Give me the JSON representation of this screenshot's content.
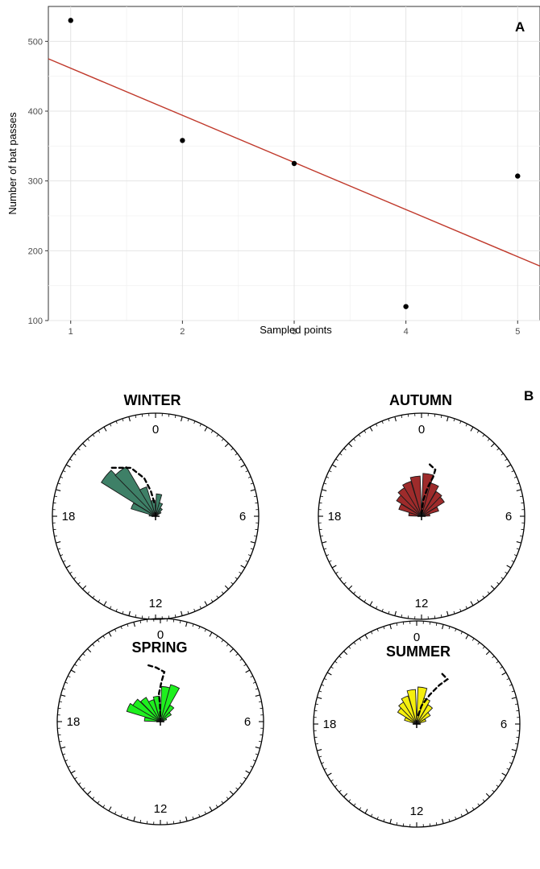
{
  "panel_a": {
    "letter": "A",
    "chart_data": {
      "type": "scatter",
      "title": "",
      "xlabel": "Sampled points",
      "ylabel": "Number of bat passes",
      "xlim": [
        0.8,
        5.2
      ],
      "ylim": [
        100,
        550
      ],
      "x_ticks": [
        1,
        2,
        3,
        4,
        5
      ],
      "y_ticks": [
        100,
        200,
        300,
        400,
        500
      ],
      "points": [
        {
          "x": 1,
          "y": 530
        },
        {
          "x": 2,
          "y": 358
        },
        {
          "x": 3,
          "y": 325
        },
        {
          "x": 4,
          "y": 120
        },
        {
          "x": 5,
          "y": 307
        }
      ],
      "trend_line": {
        "x": [
          0.8,
          5.2
        ],
        "y": [
          475,
          178
        ],
        "color": "#c0392b"
      },
      "grid": true,
      "point_color": "#000000",
      "background": "#ffffff"
    }
  },
  "panel_b": {
    "letter": "B",
    "chart_data": [
      {
        "type": "rose",
        "title": "WINTER",
        "color": "#3e8067",
        "hour_labels": [
          "0",
          "6",
          "12",
          "18"
        ],
        "bins": [
          {
            "hour": 19.6,
            "value": 0.4
          },
          {
            "hour": 20.6,
            "value": 1.0
          },
          {
            "hour": 21.5,
            "value": 0.9
          },
          {
            "hour": 22.4,
            "value": 0.48
          },
          {
            "hour": 23.4,
            "value": 0.25
          },
          {
            "hour": 0.6,
            "value": 0.35
          },
          {
            "hour": 1.5,
            "value": 0.22
          },
          {
            "hour": 2.5,
            "value": 0.15
          },
          {
            "hour": 3.4,
            "value": 0.1
          },
          {
            "hour": 18.6,
            "value": 0.1
          }
        ],
        "mean_line": [
          [
            21.2,
            1.02
          ],
          [
            22.2,
            0.85
          ],
          [
            22.9,
            0.62
          ],
          [
            23.3,
            0.4
          ],
          [
            23.7,
            0.2
          ]
        ]
      },
      {
        "type": "rose",
        "title": "AUTUMN",
        "color": "#9e2b2b",
        "hour_labels": [
          "0",
          "6",
          "12",
          "18"
        ],
        "bins": [
          {
            "hour": 18.6,
            "value": 0.2
          },
          {
            "hour": 19.6,
            "value": 0.37
          },
          {
            "hour": 20.6,
            "value": 0.46
          },
          {
            "hour": 21.5,
            "value": 0.52
          },
          {
            "hour": 22.4,
            "value": 0.57
          },
          {
            "hour": 23.4,
            "value": 0.63
          },
          {
            "hour": 0.6,
            "value": 0.67
          },
          {
            "hour": 1.5,
            "value": 0.54
          },
          {
            "hour": 2.5,
            "value": 0.45
          },
          {
            "hour": 3.4,
            "value": 0.42
          },
          {
            "hour": 4.4,
            "value": 0.28
          },
          {
            "hour": 5.4,
            "value": 0.13
          }
        ],
        "mean_line": [
          [
            0.6,
            0.82
          ],
          [
            1.1,
            0.76
          ],
          [
            1.1,
            0.64
          ],
          [
            0.8,
            0.46
          ],
          [
            0.4,
            0.25
          ],
          [
            0.1,
            0.05
          ]
        ]
      },
      {
        "type": "rose",
        "title": "SPRING",
        "color": "#1ef01e",
        "hour_labels": [
          "0",
          "6",
          "12",
          "18"
        ],
        "bins": [
          {
            "hour": 18.6,
            "value": 0.25
          },
          {
            "hour": 19.6,
            "value": 0.55
          },
          {
            "hour": 20.5,
            "value": 0.5
          },
          {
            "hour": 21.5,
            "value": 0.44
          },
          {
            "hour": 22.4,
            "value": 0.36
          },
          {
            "hour": 23.4,
            "value": 0.4
          },
          {
            "hour": 0.6,
            "value": 0.55
          },
          {
            "hour": 1.5,
            "value": 0.6
          },
          {
            "hour": 2.5,
            "value": 0.3
          },
          {
            "hour": 3.4,
            "value": 0.2
          },
          {
            "hour": 4.4,
            "value": 0.1
          }
        ],
        "mean_line": [
          [
            23.2,
            0.9
          ],
          [
            23.7,
            0.85
          ],
          [
            0.3,
            0.78
          ],
          [
            0.1,
            0.62
          ],
          [
            23.8,
            0.44
          ],
          [
            23.9,
            0.25
          ],
          [
            0.0,
            0.05
          ]
        ]
      },
      {
        "type": "rose",
        "title": "SUMMER",
        "color": "#f5ef0e",
        "hour_labels": [
          "0",
          "6",
          "12",
          "18"
        ],
        "bins": [
          {
            "hour": 19.6,
            "value": 0.2
          },
          {
            "hour": 20.6,
            "value": 0.35
          },
          {
            "hour": 21.5,
            "value": 0.4
          },
          {
            "hour": 22.4,
            "value": 0.46
          },
          {
            "hour": 23.4,
            "value": 0.54
          },
          {
            "hour": 0.6,
            "value": 0.58
          },
          {
            "hour": 1.5,
            "value": 0.42
          },
          {
            "hour": 2.5,
            "value": 0.35
          },
          {
            "hour": 3.4,
            "value": 0.25
          },
          {
            "hour": 4.4,
            "value": 0.15
          }
        ],
        "mean_line": [
          [
            1.8,
            0.88
          ],
          [
            2.3,
            0.85
          ],
          [
            2.0,
            0.7
          ],
          [
            1.6,
            0.5
          ],
          [
            1.0,
            0.3
          ],
          [
            0.4,
            0.1
          ]
        ]
      }
    ]
  }
}
